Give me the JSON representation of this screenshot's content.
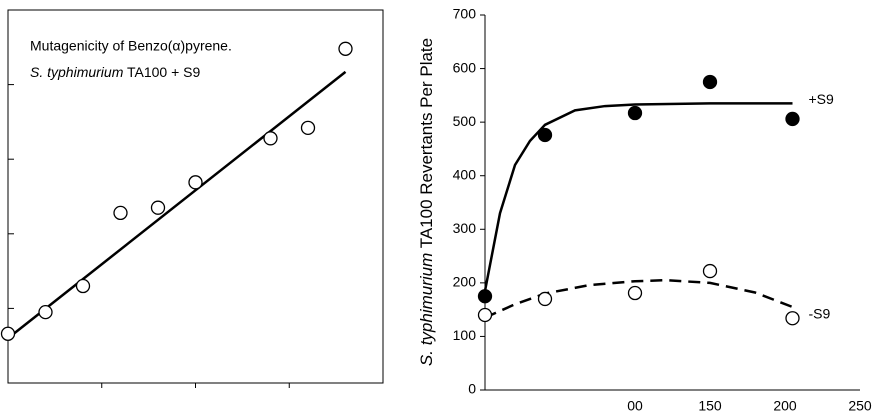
{
  "chart_data": [
    {
      "type": "scatter",
      "annotation": {
        "line1": "Mutagenicity of Benzo(α)pyrene.",
        "line2_italic": "S. typhimurium",
        "line2": " TA100 + S9"
      },
      "x": [
        0,
        0.4,
        0.8,
        1.2,
        1.6,
        2.0,
        2.8,
        3.2,
        3.6
      ],
      "series": [
        {
          "color": "#000000",
          "marker": "open",
          "values": [
            0.66,
            0.95,
            1.3,
            2.28,
            2.35,
            2.69,
            3.28,
            3.42,
            4.48
          ],
          "fit": {
            "x": [
              0,
              3.6
            ],
            "values": [
              0.6,
              4.17
            ],
            "dashed": false
          }
        }
      ],
      "xlim": [
        0,
        4
      ],
      "ylim": [
        0,
        5
      ],
      "xticks": [
        1,
        2,
        3
      ],
      "yticks": [
        1,
        2,
        3,
        4
      ],
      "frame": "box"
    },
    {
      "type": "scatter",
      "ylabel": {
        "italic": "S. typhimurium",
        "text": " TA100 Revertants Per Plate"
      },
      "x": [
        0,
        40,
        100,
        150,
        205
      ],
      "series": [
        {
          "name": "+S9",
          "color": "#000000",
          "marker": "filled",
          "values": [
            175,
            476,
            517,
            575,
            506
          ],
          "fit": {
            "x": [
              0,
              10,
              20,
              30,
              40,
              60,
              80,
              100,
              150,
              205
            ],
            "values": [
              185,
              330,
              420,
              465,
              495,
              522,
              530,
              533,
              535,
              535
            ],
            "dashed": false
          }
        },
        {
          "name": "-S9",
          "color": "#000000",
          "marker": "open",
          "values": [
            140,
            170,
            181,
            222,
            134
          ],
          "fit": {
            "x": [
              0,
              20,
              40,
              70,
              100,
              120,
              150,
              180,
              205
            ],
            "values": [
              135,
              160,
              180,
              196,
              203,
              205,
              200,
              182,
              155
            ],
            "dashed": true
          }
        }
      ],
      "xlim": [
        0,
        250
      ],
      "ylim": [
        0,
        700
      ],
      "xticks": [
        {
          "value": 100,
          "label": "00"
        },
        150,
        200,
        250
      ],
      "yticks": [
        0,
        100,
        200,
        300,
        400,
        500,
        600,
        700
      ],
      "frame": "axes"
    }
  ]
}
